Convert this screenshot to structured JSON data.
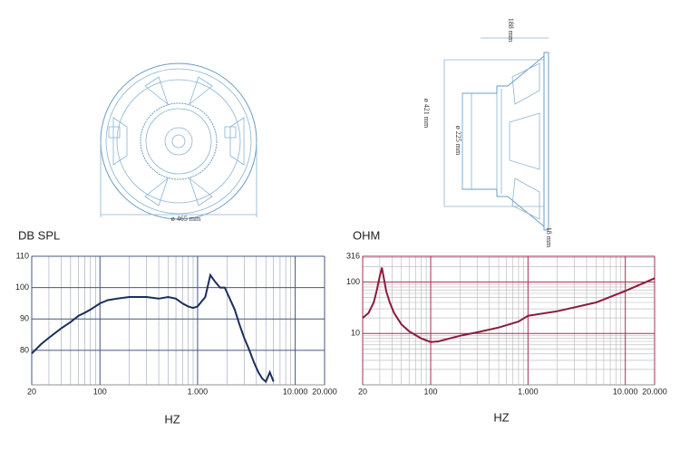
{
  "drawing": {
    "front_diameter": "ø 465 mm",
    "depth": "188 mm",
    "mount_diameter": "ø 421 mm",
    "magnet_diameter": "ø 225 mm",
    "flange": "18 mm"
  },
  "chart_data": [
    {
      "type": "line",
      "title": "DB SPL",
      "xlabel": "HZ",
      "xscale": "log",
      "yscale": "linear",
      "xlim": [
        20,
        20000
      ],
      "ylim": [
        69,
        110
      ],
      "xticks": [
        20,
        100,
        {
          "value": 1000,
          "label": "1.000"
        },
        {
          "value": 10000,
          "label": "10.000"
        },
        {
          "value": 20000,
          "label": "20.000"
        }
      ],
      "yticks": [
        80,
        90,
        100,
        110
      ],
      "xminorticks": [
        30,
        40,
        50,
        60,
        70,
        80,
        90,
        200,
        300,
        400,
        500,
        600,
        700,
        800,
        900,
        2000,
        3000,
        4000,
        5000,
        6000,
        7000,
        8000,
        9000
      ],
      "yminorticks": [],
      "grid": true,
      "grid_color": "#44577f",
      "minor_grid_color": "#9aa3b8",
      "color": "#1b2f5e",
      "x": [
        20,
        25,
        30,
        40,
        50,
        60,
        70,
        80,
        100,
        120,
        150,
        200,
        300,
        400,
        500,
        600,
        700,
        800,
        900,
        1000,
        1200,
        1350,
        1500,
        1700,
        1900,
        2100,
        2400,
        2700,
        3000,
        3400,
        3800,
        4200,
        4600,
        5000,
        5500,
        6000
      ],
      "values": [
        79,
        82,
        84,
        87,
        89,
        91,
        92,
        93,
        95,
        96,
        96.5,
        97,
        97,
        96.5,
        97,
        96.5,
        95,
        94,
        93.5,
        94,
        97,
        104,
        102,
        100,
        100,
        97,
        93,
        88,
        84,
        80,
        76,
        73,
        71,
        70,
        73,
        70
      ]
    },
    {
      "type": "line",
      "title": "OHM",
      "xlabel": "HZ",
      "xscale": "log",
      "yscale": "log",
      "xlim": [
        20,
        20000
      ],
      "ylim": [
        1,
        316
      ],
      "xticks": [
        20,
        100,
        {
          "value": 1000,
          "label": "1.000"
        },
        {
          "value": 10000,
          "label": "10.000"
        },
        {
          "value": 20000,
          "label": "20.000"
        }
      ],
      "yticks": [
        10,
        100,
        316
      ],
      "xminorticks": [
        30,
        40,
        50,
        60,
        70,
        80,
        90,
        200,
        300,
        400,
        500,
        600,
        700,
        800,
        900,
        2000,
        3000,
        4000,
        5000,
        6000,
        7000,
        8000,
        9000
      ],
      "yminorticks": [
        2,
        3,
        4,
        5,
        6,
        7,
        8,
        9,
        20,
        30,
        40,
        50,
        60,
        70,
        80,
        90,
        200,
        300
      ],
      "grid": true,
      "grid_color": "#a3314f",
      "minor_grid_color": "#b5b5b5",
      "color": "#8a1b3b",
      "x": [
        20,
        23,
        26,
        28,
        30,
        31.5,
        33,
        35,
        38,
        42,
        50,
        60,
        80,
        100,
        120,
        150,
        200,
        300,
        500,
        800,
        1000,
        2000,
        5000,
        10000,
        20000
      ],
      "values": [
        20,
        25,
        40,
        70,
        130,
        190,
        120,
        65,
        40,
        25,
        15,
        11,
        8,
        6.8,
        7,
        7.8,
        9,
        10.5,
        13,
        17,
        22,
        27,
        40,
        67,
        118
      ]
    }
  ]
}
